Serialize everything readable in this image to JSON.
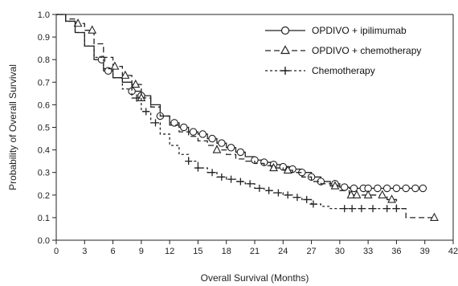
{
  "chart_data": {
    "type": "line",
    "title": "",
    "xlabel": "Overall Survival (Months)",
    "ylabel": "Probability of Overall Survival",
    "xlim": [
      0,
      42
    ],
    "ylim": [
      0,
      1.0
    ],
    "x_ticks": [
      0,
      3,
      6,
      9,
      12,
      15,
      18,
      21,
      24,
      27,
      30,
      33,
      36,
      39,
      42
    ],
    "x_tick_labels": [
      "0",
      "3",
      "6",
      "9",
      "12",
      "15",
      "18",
      "21",
      "24",
      "27",
      "30",
      "33",
      "36",
      "39",
      "42"
    ],
    "y_ticks": [
      0.0,
      0.1,
      0.2,
      0.3,
      0.4,
      0.5,
      0.6,
      0.7,
      0.8,
      0.9,
      1.0
    ],
    "y_tick_labels": [
      "0.0",
      "0.1",
      "0.2",
      "0.3",
      "0.4",
      "0.5",
      "0.6",
      "0.7",
      "0.8",
      "0.9",
      "1.0"
    ],
    "grid": false,
    "legend_position": "top-right",
    "series": [
      {
        "name": "OPDIVO + ipilimumab",
        "line_style": "solid",
        "marker": "circle",
        "x": [
          0,
          1,
          2,
          3,
          4,
          5,
          6,
          7,
          8,
          9,
          10,
          11,
          12,
          13,
          14,
          15,
          16,
          17,
          18,
          19,
          20,
          21,
          22,
          23,
          24,
          25,
          26,
          27,
          28,
          29,
          30,
          31,
          32,
          33,
          34,
          35,
          36,
          37,
          38,
          39
        ],
        "y": [
          1.0,
          0.97,
          0.92,
          0.86,
          0.8,
          0.75,
          0.72,
          0.7,
          0.66,
          0.64,
          0.6,
          0.55,
          0.52,
          0.5,
          0.48,
          0.47,
          0.45,
          0.43,
          0.41,
          0.39,
          0.37,
          0.355,
          0.345,
          0.335,
          0.325,
          0.315,
          0.3,
          0.28,
          0.26,
          0.25,
          0.235,
          0.23,
          0.23,
          0.23,
          0.23,
          0.23,
          0.23,
          0.23,
          0.23,
          0.23
        ],
        "markers_x": [
          4.8,
          5.5,
          8,
          9,
          11,
          12.5,
          13.5,
          14.5,
          15.5,
          16.5,
          17.5,
          18.5,
          19.5,
          21,
          22,
          23,
          24,
          25,
          26,
          27,
          28,
          29.5,
          30.5,
          31.5,
          32.5,
          33,
          34,
          35,
          36,
          37,
          38,
          38.8
        ]
      },
      {
        "name": "OPDIVO + chemotherapy",
        "line_style": "dashed",
        "marker": "triangle",
        "x": [
          0,
          1,
          2,
          3,
          4,
          5,
          6,
          7,
          8,
          9,
          10,
          11,
          12,
          13,
          14,
          15,
          16,
          17,
          18,
          19,
          20,
          21,
          22,
          23,
          24,
          25,
          26,
          27,
          28,
          29,
          30,
          31,
          32,
          33,
          34,
          35,
          36,
          37,
          40
        ],
        "y": [
          1.0,
          0.98,
          0.96,
          0.93,
          0.87,
          0.81,
          0.77,
          0.73,
          0.69,
          0.63,
          0.59,
          0.55,
          0.51,
          0.48,
          0.46,
          0.44,
          0.42,
          0.4,
          0.38,
          0.36,
          0.35,
          0.34,
          0.33,
          0.32,
          0.31,
          0.3,
          0.28,
          0.26,
          0.25,
          0.24,
          0.22,
          0.2,
          0.2,
          0.2,
          0.2,
          0.18,
          0.14,
          0.1,
          0.1
        ],
        "markers_x": [
          2.3,
          3.8,
          6.2,
          7.3,
          8.4,
          9,
          17,
          23,
          24.5,
          29.5,
          31.2,
          31.8,
          33,
          34.5,
          35.5,
          40
        ]
      },
      {
        "name": "Chemotherapy",
        "line_style": "dashed",
        "marker": "plus",
        "x": [
          0,
          1,
          2,
          3,
          4,
          5,
          6,
          7,
          8,
          9,
          10,
          11,
          12,
          13,
          14,
          15,
          16,
          17,
          18,
          19,
          20,
          21,
          22,
          23,
          24,
          25,
          26,
          27,
          28,
          29,
          30,
          31,
          32,
          33,
          34,
          35,
          36,
          37
        ],
        "y": [
          1.0,
          0.97,
          0.92,
          0.86,
          0.81,
          0.76,
          0.72,
          0.67,
          0.63,
          0.57,
          0.52,
          0.47,
          0.42,
          0.38,
          0.35,
          0.32,
          0.3,
          0.28,
          0.27,
          0.26,
          0.25,
          0.23,
          0.22,
          0.21,
          0.2,
          0.19,
          0.18,
          0.16,
          0.15,
          0.14,
          0.14,
          0.14,
          0.14,
          0.14,
          0.14,
          0.14,
          0.14,
          0.14
        ],
        "markers_x": [
          8.5,
          9.5,
          10.5,
          14,
          15,
          16.5,
          17.5,
          18.5,
          19.5,
          20.5,
          21.5,
          22.5,
          23.5,
          24.5,
          25.5,
          26.5,
          27.2,
          30.5,
          31.3,
          32.3,
          33.5,
          35,
          36
        ]
      }
    ]
  }
}
